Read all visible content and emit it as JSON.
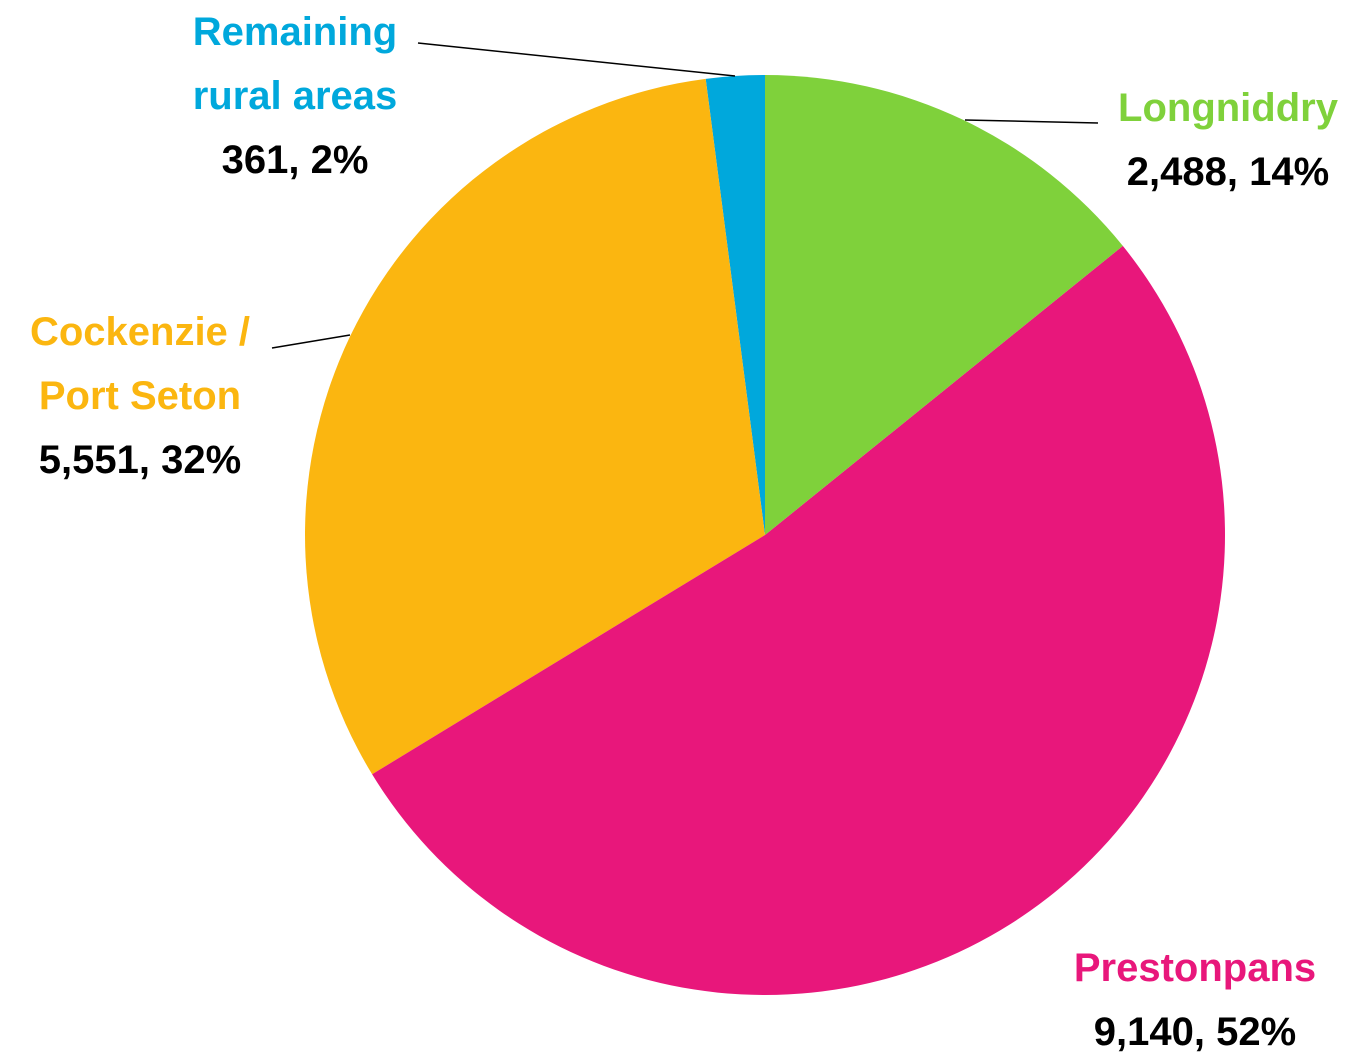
{
  "chart_data": {
    "type": "pie",
    "categories": [
      "Longniddry",
      "Prestonpans",
      "Cockenzie / Port Seton",
      "Remaining rural areas"
    ],
    "values": [
      2488,
      9140,
      5551,
      361
    ],
    "value_labels": [
      "2,488, 14%",
      "9,140, 52%",
      "5,551, 32%",
      "361, 2%"
    ],
    "colors": [
      "#7fd13b",
      "#e8177b",
      "#fbb610",
      "#00a8dc"
    ]
  }
}
